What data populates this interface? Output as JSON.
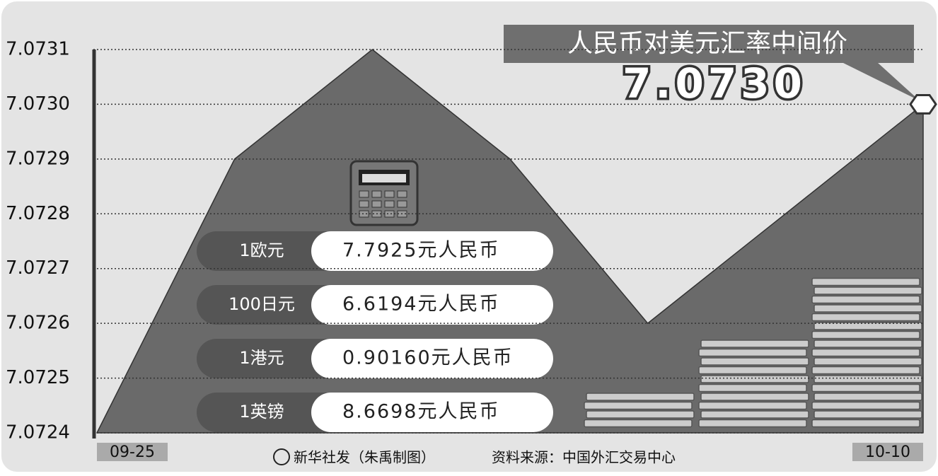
{
  "chart_data": {
    "type": "area",
    "title": "人民币对美元汇率中间价",
    "headline": "7.0730",
    "categories": [
      "09-25",
      null,
      null,
      null,
      null,
      null,
      "10-10"
    ],
    "values": [
      7.0724,
      7.0729,
      7.0731,
      7.0729,
      7.0726,
      7.0728,
      7.073
    ],
    "color": "#6a6a6a",
    "ylim": [
      7.0724,
      7.0731
    ],
    "yticks": [
      7.0724,
      7.0725,
      7.0726,
      7.0727,
      7.0728,
      7.0729,
      {
        "value": 7.073,
        "label": "7.0730"
      },
      7.0731
    ],
    "grid": true
  },
  "rates": [
    {
      "currency": "1欧元",
      "value": "7.7925元人民币"
    },
    {
      "currency": "100日元",
      "value": "6.6194元人民币"
    },
    {
      "currency": "1港元",
      "value": "0.90160元人民币"
    },
    {
      "currency": "1英镑",
      "value": "8.6698元人民币"
    }
  ],
  "footer": {
    "credit": "新华社发（朱禹制图）",
    "source": "资料来源：中国外汇交易中心"
  }
}
